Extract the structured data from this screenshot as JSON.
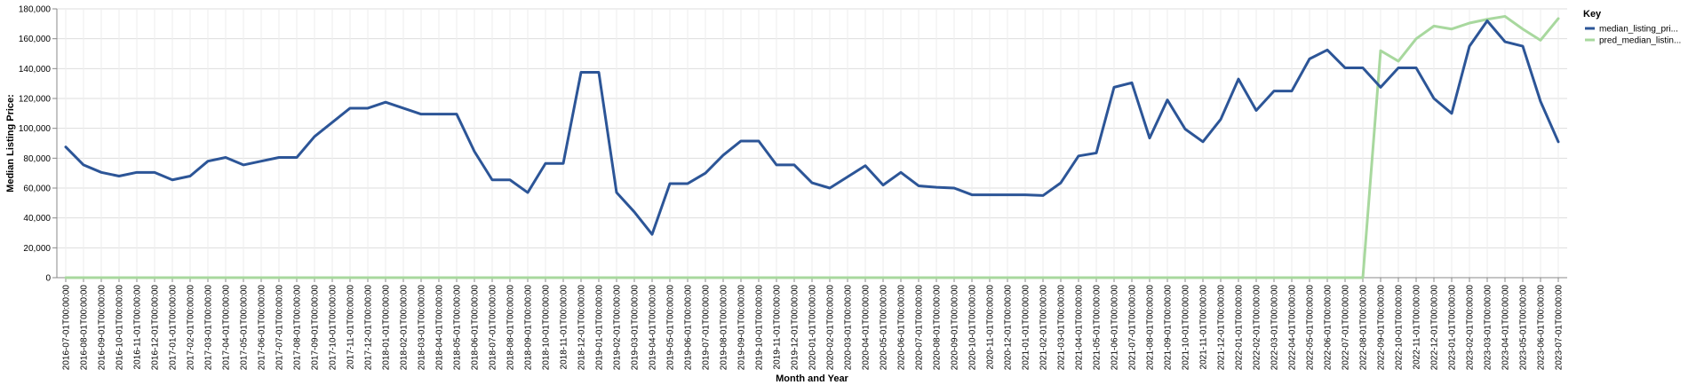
{
  "chart_data": {
    "type": "line",
    "xlabel": "Month and Year",
    "ylabel": "Median Listing Price:",
    "ylim": [
      0,
      180000
    ],
    "yticks": [
      0,
      20000,
      40000,
      60000,
      80000,
      100000,
      120000,
      140000,
      160000,
      180000
    ],
    "ytick_labels": [
      "0",
      "20,000",
      "40,000",
      "60,000",
      "80,000",
      "100,000",
      "120,000",
      "140,000",
      "160,000",
      "180,000"
    ],
    "grid": true,
    "legend": {
      "title": "Key",
      "position": "top-right"
    },
    "x": [
      "2016-07-01T00:00:00",
      "2016-08-01T00:00:00",
      "2016-09-01T00:00:00",
      "2016-10-01T00:00:00",
      "2016-11-01T00:00:00",
      "2016-12-01T00:00:00",
      "2017-01-01T00:00:00",
      "2017-02-01T00:00:00",
      "2017-03-01T00:00:00",
      "2017-04-01T00:00:00",
      "2017-05-01T00:00:00",
      "2017-06-01T00:00:00",
      "2017-07-01T00:00:00",
      "2017-08-01T00:00:00",
      "2017-09-01T00:00:00",
      "2017-10-01T00:00:00",
      "2017-11-01T00:00:00",
      "2017-12-01T00:00:00",
      "2018-01-01T00:00:00",
      "2018-02-01T00:00:00",
      "2018-03-01T00:00:00",
      "2018-04-01T00:00:00",
      "2018-05-01T00:00:00",
      "2018-06-01T00:00:00",
      "2018-07-01T00:00:00",
      "2018-08-01T00:00:00",
      "2018-09-01T00:00:00",
      "2018-10-01T00:00:00",
      "2018-11-01T00:00:00",
      "2018-12-01T00:00:00",
      "2019-01-01T00:00:00",
      "2019-02-01T00:00:00",
      "2019-03-01T00:00:00",
      "2019-04-01T00:00:00",
      "2019-05-01T00:00:00",
      "2019-06-01T00:00:00",
      "2019-07-01T00:00:00",
      "2019-08-01T00:00:00",
      "2019-09-01T00:00:00",
      "2019-10-01T00:00:00",
      "2019-11-01T00:00:00",
      "2019-12-01T00:00:00",
      "2020-01-01T00:00:00",
      "2020-02-01T00:00:00",
      "2020-03-01T00:00:00",
      "2020-04-01T00:00:00",
      "2020-05-01T00:00:00",
      "2020-06-01T00:00:00",
      "2020-07-01T00:00:00",
      "2020-08-01T00:00:00",
      "2020-09-01T00:00:00",
      "2020-10-01T00:00:00",
      "2020-11-01T00:00:00",
      "2020-12-01T00:00:00",
      "2021-01-01T00:00:00",
      "2021-02-01T00:00:00",
      "2021-03-01T00:00:00",
      "2021-04-01T00:00:00",
      "2021-05-01T00:00:00",
      "2021-06-01T00:00:00",
      "2021-07-01T00:00:00",
      "2021-08-01T00:00:00",
      "2021-09-01T00:00:00",
      "2021-10-01T00:00:00",
      "2021-11-01T00:00:00",
      "2021-12-01T00:00:00",
      "2022-01-01T00:00:00",
      "2022-02-01T00:00:00",
      "2022-03-01T00:00:00",
      "2022-04-01T00:00:00",
      "2022-05-01T00:00:00",
      "2022-06-01T00:00:00",
      "2022-07-01T00:00:00",
      "2022-08-01T00:00:00",
      "2022-09-01T00:00:00",
      "2022-10-01T00:00:00",
      "2022-11-01T00:00:00",
      "2022-12-01T00:00:00",
      "2023-01-01T00:00:00",
      "2023-02-01T00:00:00",
      "2023-03-01T00:00:00",
      "2023-04-01T00:00:00",
      "2023-05-01T00:00:00",
      "2023-06-01T00:00:00",
      "2023-07-01T00:00:00"
    ],
    "series": [
      {
        "name": "median_listing_pri...",
        "color": "#2c5597",
        "values": [
          87500,
          75500,
          70500,
          68000,
          70500,
          70500,
          65500,
          68000,
          78000,
          80500,
          75500,
          78000,
          80500,
          80500,
          94500,
          104000,
          113500,
          113500,
          117500,
          113500,
          109500,
          109500,
          109500,
          84500,
          65500,
          65500,
          57000,
          76500,
          76500,
          137500,
          137500,
          57000,
          44000,
          29000,
          63000,
          63000,
          70000,
          82000,
          91500,
          91500,
          75500,
          75500,
          63500,
          60000,
          67500,
          75000,
          62000,
          70500,
          61500,
          60500,
          60000,
          55500,
          55500,
          55500,
          55500,
          55000,
          63500,
          81500,
          83500,
          127500,
          130500,
          93500,
          119000,
          99500,
          91000,
          106000,
          133000,
          112000,
          125000,
          125000,
          146500,
          152500,
          140500,
          140500,
          127500,
          140500,
          140500,
          120000,
          110000,
          155000,
          172000,
          158000,
          155000,
          118000,
          91000
        ]
      },
      {
        "name": "pred_median_listin...",
        "color": "#a8d89e",
        "values": [
          0,
          0,
          0,
          0,
          0,
          0,
          0,
          0,
          0,
          0,
          0,
          0,
          0,
          0,
          0,
          0,
          0,
          0,
          0,
          0,
          0,
          0,
          0,
          0,
          0,
          0,
          0,
          0,
          0,
          0,
          0,
          0,
          0,
          0,
          0,
          0,
          0,
          0,
          0,
          0,
          0,
          0,
          0,
          0,
          0,
          0,
          0,
          0,
          0,
          0,
          0,
          0,
          0,
          0,
          0,
          0,
          0,
          0,
          0,
          0,
          0,
          0,
          0,
          0,
          0,
          0,
          0,
          0,
          0,
          0,
          0,
          0,
          0,
          0,
          152000,
          145000,
          160000,
          168500,
          166500,
          170500,
          173000,
          175000,
          166500,
          159000,
          173500
        ]
      }
    ]
  }
}
